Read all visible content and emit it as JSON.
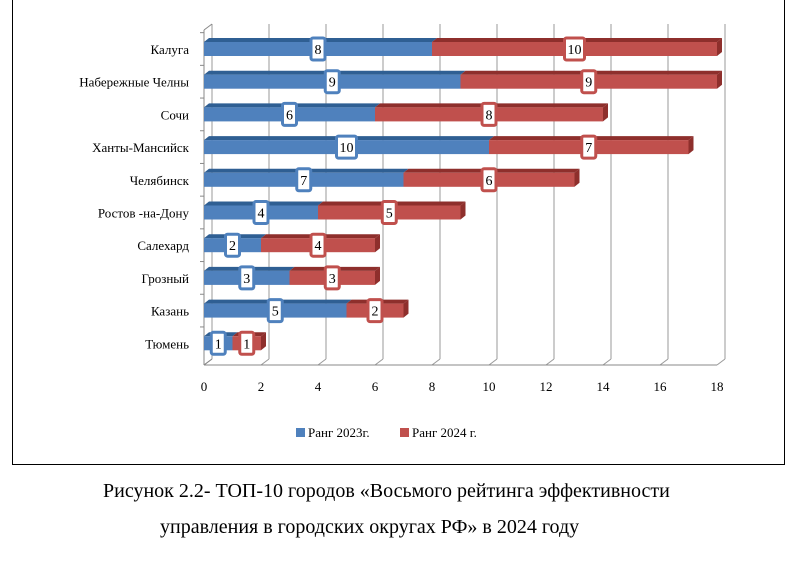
{
  "chart_data": {
    "type": "bar",
    "orientation": "horizontal",
    "stacked": true,
    "categories": [
      "Калуга",
      "Набережные Челны",
      "Сочи",
      "Ханты-Мансийск",
      "Челябинск",
      "Ростов -на-Дону",
      "Салехард",
      "Грозный",
      "Казань",
      "Тюмень"
    ],
    "series": [
      {
        "name": "Ранг 2023г.",
        "color": "#4f81bd",
        "values": [
          8,
          9,
          6,
          10,
          7,
          4,
          2,
          3,
          5,
          1
        ]
      },
      {
        "name": "Ранг 2024 г.",
        "color": "#c0504d",
        "values": [
          10,
          9,
          8,
          7,
          6,
          5,
          4,
          3,
          2,
          1
        ]
      }
    ],
    "xlim": [
      0,
      18
    ],
    "xticks": [
      "0",
      "2",
      "4",
      "6",
      "8",
      "10",
      "12",
      "14",
      "16",
      "18"
    ],
    "grid": true,
    "legend": "bottom"
  },
  "caption": {
    "line1": "Рисунок 2.2- ТОП-10 городов «Восьмого рейтинга эффективности",
    "line2": "управления в городских округах РФ» в 2024 году"
  }
}
